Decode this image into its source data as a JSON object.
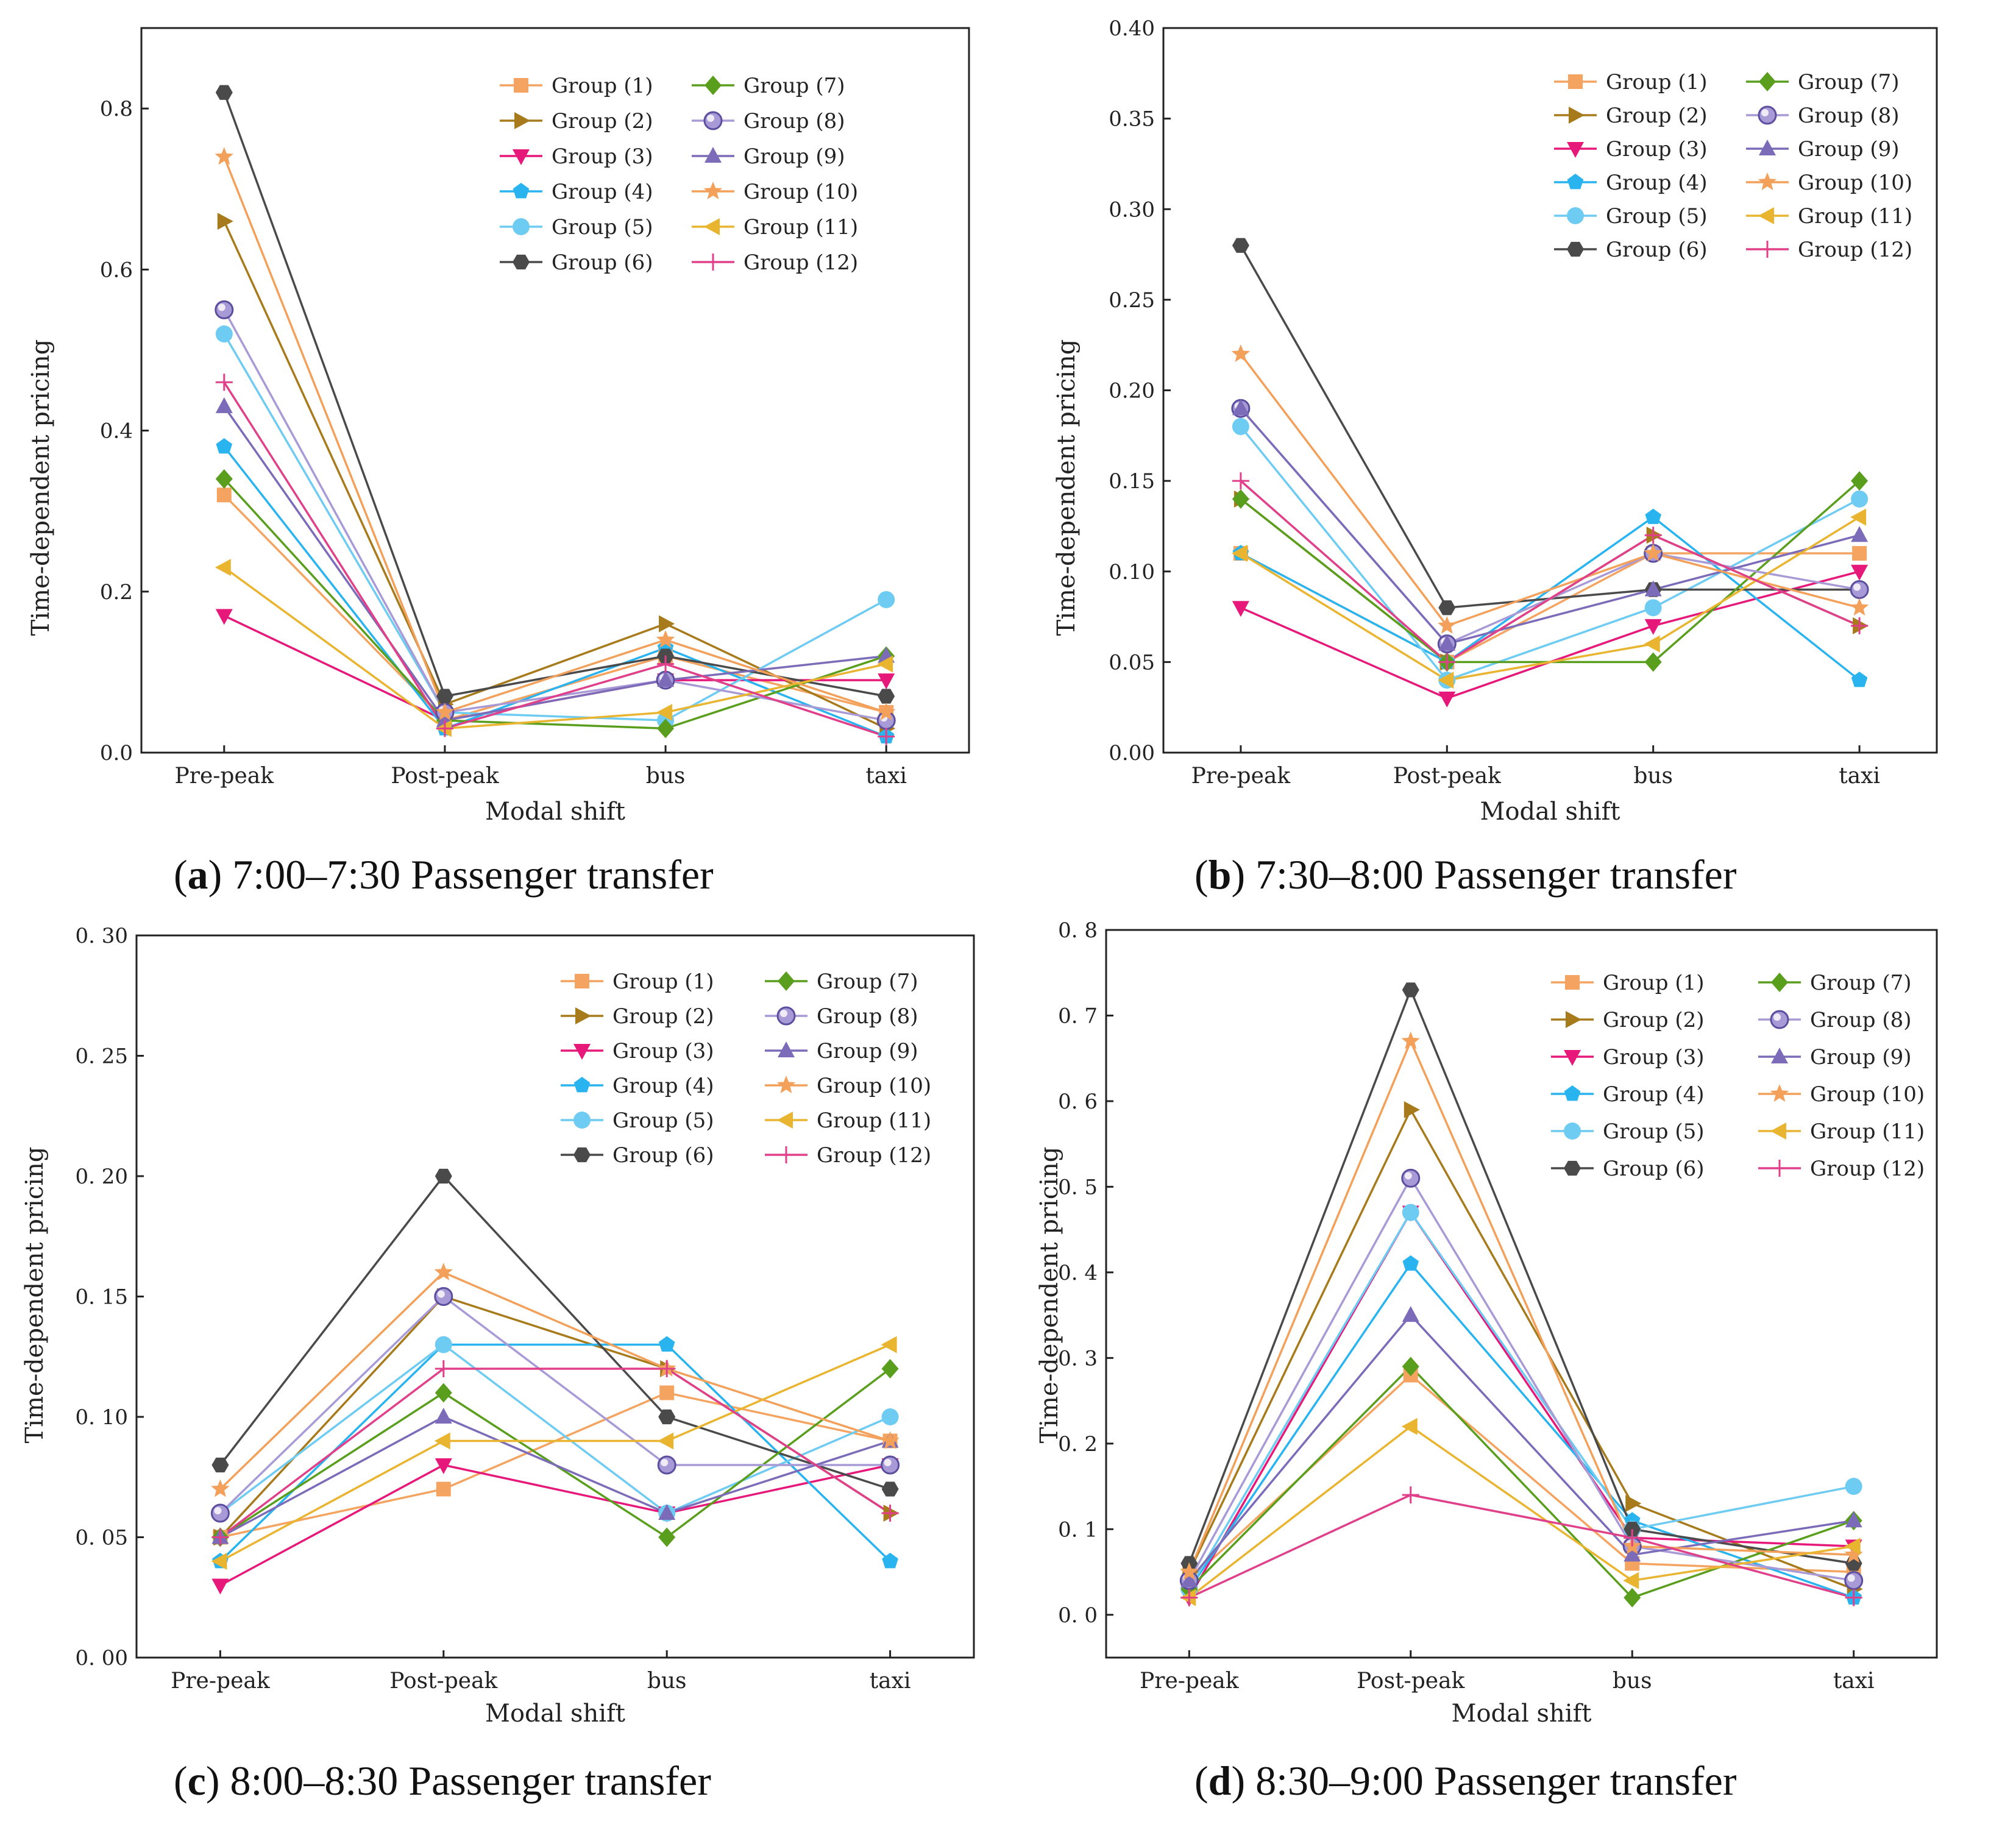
{
  "groups": [
    "Group (1)",
    "Group (2)",
    "Group (3)",
    "Group (4)",
    "Group (5)",
    "Group (6)",
    "Group (7)",
    "Group (8)",
    "Group (9)",
    "Group (10)",
    "Group (11)",
    "Group (12)"
  ],
  "colors": [
    "#f4a460",
    "#a77b1c",
    "#e6197a",
    "#2ab4ef",
    "#6ecbf2",
    "#4a4a4a",
    "#5a9e1e",
    "#a89ad6",
    "#7b6bb8",
    "#f2a05a",
    "#e9b530",
    "#e0408a"
  ],
  "markers": [
    "square",
    "triangle-right",
    "triangle-down",
    "pentagon",
    "circle",
    "hexagon",
    "diamond",
    "sphere",
    "triangle-up",
    "star",
    "triangle-left",
    "plus"
  ],
  "chart_data": [
    {
      "type": "line",
      "caption_letter": "a",
      "caption_text": " 7:00–7:30 Passenger transfer",
      "xlabel": "Modal shift",
      "ylabel": "Time-dependent pricing",
      "categories": [
        "Pre-peak",
        "Post-peak",
        "bus",
        "taxi"
      ],
      "ylim": [
        0,
        0.9
      ],
      "yticks": [
        "0.0",
        "0.2",
        "0.4",
        "0.6",
        "0.8"
      ],
      "ytick_values": [
        0,
        0.2,
        0.4,
        0.6,
        0.8
      ],
      "series": [
        {
          "name": "Group (1)",
          "values": [
            0.32,
            0.04,
            0.12,
            0.05
          ]
        },
        {
          "name": "Group (2)",
          "values": [
            0.66,
            0.06,
            0.16,
            0.03
          ]
        },
        {
          "name": "Group (3)",
          "values": [
            0.17,
            0.04,
            0.09,
            0.09
          ]
        },
        {
          "name": "Group (4)",
          "values": [
            0.38,
            0.03,
            0.13,
            0.02
          ]
        },
        {
          "name": "Group (5)",
          "values": [
            0.52,
            0.05,
            0.04,
            0.19
          ]
        },
        {
          "name": "Group (6)",
          "values": [
            0.82,
            0.07,
            0.12,
            0.07
          ]
        },
        {
          "name": "Group (7)",
          "values": [
            0.34,
            0.04,
            0.03,
            0.12
          ]
        },
        {
          "name": "Group (8)",
          "values": [
            0.55,
            0.05,
            0.09,
            0.04
          ]
        },
        {
          "name": "Group (9)",
          "values": [
            0.43,
            0.04,
            0.09,
            0.12
          ]
        },
        {
          "name": "Group (10)",
          "values": [
            0.74,
            0.05,
            0.14,
            0.05
          ]
        },
        {
          "name": "Group (11)",
          "values": [
            0.23,
            0.03,
            0.05,
            0.11
          ]
        },
        {
          "name": "Group (12)",
          "values": [
            0.46,
            0.03,
            0.11,
            0.02
          ]
        }
      ]
    },
    {
      "type": "line",
      "caption_letter": "b",
      "caption_text": " 7:30–8:00 Passenger transfer",
      "xlabel": "Modal shift",
      "ylabel": "Time-dependent pricing",
      "categories": [
        "Pre-peak",
        "Post-peak",
        "bus",
        "taxi"
      ],
      "ylim": [
        0,
        0.4
      ],
      "yticks": [
        "0.00",
        "0.05",
        "0.10",
        "0.15",
        "0.20",
        "0.25",
        "0.30",
        "0.35",
        "0.40"
      ],
      "ytick_values": [
        0,
        0.05,
        0.1,
        0.15,
        0.2,
        0.25,
        0.3,
        0.35,
        0.4
      ],
      "series": [
        {
          "name": "Group (1)",
          "values": [
            0.11,
            0.05,
            0.11,
            0.11
          ]
        },
        {
          "name": "Group (2)",
          "values": [
            0.14,
            0.05,
            0.12,
            0.07
          ]
        },
        {
          "name": "Group (3)",
          "values": [
            0.08,
            0.03,
            0.07,
            0.1
          ]
        },
        {
          "name": "Group (4)",
          "values": [
            0.11,
            0.05,
            0.13,
            0.04
          ]
        },
        {
          "name": "Group (5)",
          "values": [
            0.18,
            0.04,
            0.08,
            0.14
          ]
        },
        {
          "name": "Group (6)",
          "values": [
            0.28,
            0.08,
            0.09,
            0.09
          ]
        },
        {
          "name": "Group (7)",
          "values": [
            0.14,
            0.05,
            0.05,
            0.15
          ]
        },
        {
          "name": "Group (8)",
          "values": [
            0.19,
            0.06,
            0.11,
            0.09
          ]
        },
        {
          "name": "Group (9)",
          "values": [
            0.19,
            0.06,
            0.09,
            0.12
          ]
        },
        {
          "name": "Group (10)",
          "values": [
            0.22,
            0.07,
            0.11,
            0.08
          ]
        },
        {
          "name": "Group (11)",
          "values": [
            0.11,
            0.04,
            0.06,
            0.13
          ]
        },
        {
          "name": "Group (12)",
          "values": [
            0.15,
            0.05,
            0.12,
            0.07
          ]
        }
      ]
    },
    {
      "type": "line",
      "caption_letter": "c",
      "caption_text": " 8:00–8:30 Passenger transfer",
      "xlabel": "Modal shift",
      "ylabel": "Time-dependent pricing",
      "categories": [
        "Pre-peak",
        "Post-peak",
        "bus",
        "taxi"
      ],
      "ylim": [
        0,
        0.3
      ],
      "yticks": [
        "0. 00",
        "0. 05",
        "0. 10",
        "0. 15",
        "0. 20",
        "0. 25",
        "0. 30"
      ],
      "ytick_values": [
        0,
        0.05,
        0.1,
        0.15,
        0.2,
        0.25,
        0.3
      ],
      "series": [
        {
          "name": "Group (1)",
          "values": [
            0.05,
            0.07,
            0.11,
            0.09
          ]
        },
        {
          "name": "Group (2)",
          "values": [
            0.05,
            0.15,
            0.12,
            0.06
          ]
        },
        {
          "name": "Group (3)",
          "values": [
            0.03,
            0.08,
            0.06,
            0.08
          ]
        },
        {
          "name": "Group (4)",
          "values": [
            0.04,
            0.13,
            0.13,
            0.04
          ]
        },
        {
          "name": "Group (5)",
          "values": [
            0.06,
            0.13,
            0.06,
            0.1
          ]
        },
        {
          "name": "Group (6)",
          "values": [
            0.08,
            0.2,
            0.1,
            0.07
          ]
        },
        {
          "name": "Group (7)",
          "values": [
            0.05,
            0.11,
            0.05,
            0.12
          ]
        },
        {
          "name": "Group (8)",
          "values": [
            0.06,
            0.15,
            0.08,
            0.08
          ]
        },
        {
          "name": "Group (9)",
          "values": [
            0.05,
            0.1,
            0.06,
            0.09
          ]
        },
        {
          "name": "Group (10)",
          "values": [
            0.07,
            0.16,
            0.12,
            0.09
          ]
        },
        {
          "name": "Group (11)",
          "values": [
            0.04,
            0.09,
            0.09,
            0.13
          ]
        },
        {
          "name": "Group (12)",
          "values": [
            0.05,
            0.12,
            0.12,
            0.06
          ]
        }
      ]
    },
    {
      "type": "line",
      "caption_letter": "d",
      "caption_text": " 8:30–9:00 Passenger transfer",
      "xlabel": "Modal shift",
      "ylabel": "Time-dependent pricing",
      "categories": [
        "Pre-peak",
        "Post-peak",
        "bus",
        "taxi"
      ],
      "ylim": [
        -0.05,
        0.8
      ],
      "yticks": [
        "0. 0",
        "0. 1",
        "0. 2",
        "0. 3",
        "0. 4",
        "0. 5",
        "0. 6",
        "0. 7",
        "0. 8"
      ],
      "ytick_values": [
        0,
        0.1,
        0.2,
        0.3,
        0.4,
        0.5,
        0.6,
        0.7,
        0.8
      ],
      "series": [
        {
          "name": "Group (1)",
          "values": [
            0.04,
            0.28,
            0.06,
            0.05
          ]
        },
        {
          "name": "Group (2)",
          "values": [
            0.05,
            0.59,
            0.13,
            0.03
          ]
        },
        {
          "name": "Group (3)",
          "values": [
            0.02,
            0.47,
            0.09,
            0.08
          ]
        },
        {
          "name": "Group (4)",
          "values": [
            0.03,
            0.41,
            0.11,
            0.02
          ]
        },
        {
          "name": "Group (5)",
          "values": [
            0.03,
            0.47,
            0.1,
            0.15
          ]
        },
        {
          "name": "Group (6)",
          "values": [
            0.06,
            0.73,
            0.1,
            0.06
          ]
        },
        {
          "name": "Group (7)",
          "values": [
            0.03,
            0.29,
            0.02,
            0.11
          ]
        },
        {
          "name": "Group (8)",
          "values": [
            0.04,
            0.51,
            0.08,
            0.04
          ]
        },
        {
          "name": "Group (9)",
          "values": [
            0.04,
            0.35,
            0.07,
            0.11
          ]
        },
        {
          "name": "Group (10)",
          "values": [
            0.05,
            0.67,
            0.08,
            0.07
          ]
        },
        {
          "name": "Group (11)",
          "values": [
            0.02,
            0.22,
            0.04,
            0.08
          ]
        },
        {
          "name": "Group (12)",
          "values": [
            0.02,
            0.14,
            0.09,
            0.02
          ]
        }
      ]
    }
  ]
}
